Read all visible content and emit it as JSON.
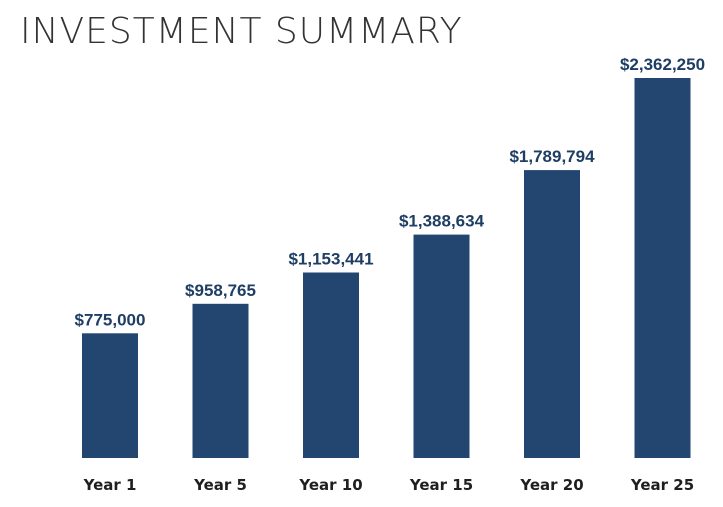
{
  "chart_data": {
    "type": "bar",
    "title": "INVESTMENT SUMMARY",
    "categories": [
      "Year 1",
      "Year 5",
      "Year 10",
      "Year 15",
      "Year 20",
      "Year 25"
    ],
    "values": [
      775000,
      958765,
      1153441,
      1388634,
      1789794,
      2362250
    ],
    "data_labels": [
      "$775,000",
      "$958,765",
      "$1,153,441",
      "$1,388,634",
      "$1,789,794",
      "$2,362,250"
    ],
    "xlabel": "",
    "ylabel": "",
    "grid": false,
    "colors": {
      "bar": "#22466f",
      "value_label": "#1f3e64",
      "category_label": "#1f1f1f"
    }
  }
}
